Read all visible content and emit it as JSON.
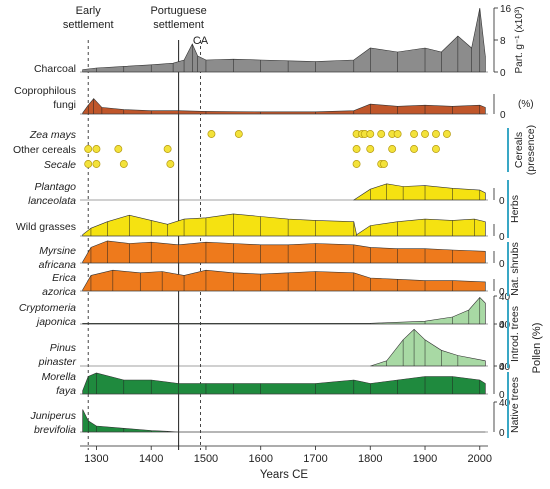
{
  "chart_data": {
    "type": "area",
    "xlabel": "Years CE",
    "xlim": [
      1270,
      2015
    ],
    "xticks": [
      1300,
      1400,
      1500,
      1600,
      1700,
      1800,
      1900,
      2000
    ],
    "colors": {
      "charcoal": "#8c8c8c",
      "fungi": "#c0562a",
      "herbs": "#f5e211",
      "shrubs": "#ee7a1c",
      "introduced": "#a8d9a4",
      "native": "#1f8a3e",
      "dots": "#f3e23a",
      "group_bar": "#39a7c5"
    },
    "events": [
      {
        "label": "Early\nsettlement",
        "year": 1285,
        "style": "dashed"
      },
      {
        "label": "Portuguese\nsettlement",
        "year": 1450,
        "style": "solid"
      },
      {
        "label": "CA",
        "year": 1490,
        "style": "dashed"
      }
    ],
    "panels": [
      {
        "key": "charcoal",
        "label": "Charcoal",
        "italic": false,
        "color": "charcoal",
        "max": 16,
        "points": [
          [
            1275,
            0.6
          ],
          [
            1300,
            1.0
          ],
          [
            1350,
            1.4
          ],
          [
            1400,
            1.8
          ],
          [
            1440,
            2.2
          ],
          [
            1460,
            3.0
          ],
          [
            1475,
            7.0
          ],
          [
            1485,
            4.0
          ],
          [
            1500,
            3.0
          ],
          [
            1550,
            3.2
          ],
          [
            1600,
            3.0
          ],
          [
            1650,
            2.8
          ],
          [
            1700,
            2.6
          ],
          [
            1770,
            3.0
          ],
          [
            1800,
            6.0
          ],
          [
            1850,
            5.0
          ],
          [
            1900,
            6.0
          ],
          [
            1930,
            5.0
          ],
          [
            1960,
            9.0
          ],
          [
            1985,
            6.0
          ],
          [
            2000,
            16.0
          ],
          [
            2010,
            4.0
          ]
        ]
      },
      {
        "key": "fungi",
        "label": "Coprophilous\nfungi",
        "italic": false,
        "color": "fungi",
        "max": 100,
        "points": [
          [
            1275,
            5
          ],
          [
            1285,
            40
          ],
          [
            1295,
            70
          ],
          [
            1310,
            30
          ],
          [
            1350,
            20
          ],
          [
            1400,
            15
          ],
          [
            1450,
            15
          ],
          [
            1500,
            12
          ],
          [
            1600,
            10
          ],
          [
            1700,
            10
          ],
          [
            1770,
            15
          ],
          [
            1800,
            45
          ],
          [
            1850,
            35
          ],
          [
            1900,
            40
          ],
          [
            1950,
            35
          ],
          [
            2000,
            40
          ],
          [
            2010,
            30
          ]
        ]
      },
      {
        "key": "wild_grasses",
        "label": "Wild grasses",
        "italic": false,
        "color": "herbs",
        "max": 100,
        "points": [
          [
            1275,
            5
          ],
          [
            1290,
            30
          ],
          [
            1320,
            55
          ],
          [
            1360,
            80
          ],
          [
            1400,
            60
          ],
          [
            1430,
            45
          ],
          [
            1460,
            65
          ],
          [
            1500,
            70
          ],
          [
            1550,
            85
          ],
          [
            1600,
            75
          ],
          [
            1650,
            65
          ],
          [
            1700,
            60
          ],
          [
            1770,
            55
          ],
          [
            1775,
            5
          ],
          [
            1800,
            40
          ],
          [
            1850,
            55
          ],
          [
            1900,
            65
          ],
          [
            1950,
            60
          ],
          [
            1990,
            65
          ],
          [
            2010,
            55
          ]
        ]
      },
      {
        "key": "plantago",
        "label": "Plantago\nlanceolata",
        "italic": true,
        "color": "herbs",
        "max": 100,
        "points": [
          [
            1770,
            0
          ],
          [
            1800,
            60
          ],
          [
            1830,
            90
          ],
          [
            1860,
            75
          ],
          [
            1900,
            80
          ],
          [
            1950,
            65
          ],
          [
            2000,
            55
          ],
          [
            2010,
            40
          ]
        ]
      },
      {
        "key": "myrsine",
        "label": "Myrsine\nafricana",
        "italic": true,
        "color": "shrubs",
        "max": 100,
        "points": [
          [
            1275,
            5
          ],
          [
            1290,
            60
          ],
          [
            1320,
            85
          ],
          [
            1360,
            75
          ],
          [
            1400,
            80
          ],
          [
            1450,
            70
          ],
          [
            1500,
            80
          ],
          [
            1550,
            75
          ],
          [
            1600,
            70
          ],
          [
            1650,
            70
          ],
          [
            1700,
            75
          ],
          [
            1770,
            70
          ],
          [
            1800,
            60
          ],
          [
            1850,
            55
          ],
          [
            1900,
            55
          ],
          [
            1950,
            50
          ],
          [
            2010,
            45
          ]
        ]
      },
      {
        "key": "erica",
        "label": "Erica\nazorica",
        "italic": true,
        "color": "shrubs",
        "max": 100,
        "points": [
          [
            1275,
            5
          ],
          [
            1290,
            60
          ],
          [
            1330,
            80
          ],
          [
            1380,
            70
          ],
          [
            1420,
            75
          ],
          [
            1460,
            60
          ],
          [
            1500,
            80
          ],
          [
            1550,
            70
          ],
          [
            1600,
            65
          ],
          [
            1650,
            70
          ],
          [
            1700,
            75
          ],
          [
            1770,
            70
          ],
          [
            1800,
            50
          ],
          [
            1850,
            45
          ],
          [
            1900,
            40
          ],
          [
            1950,
            40
          ],
          [
            2010,
            35
          ]
        ]
      },
      {
        "key": "cryptomeria",
        "label": "Cryptomeria\njaponica",
        "italic": true,
        "color": "introduced",
        "max": 40,
        "points": [
          [
            1275,
            1
          ],
          [
            1800,
            1
          ],
          [
            1900,
            4
          ],
          [
            1950,
            10
          ],
          [
            1980,
            20
          ],
          [
            2000,
            38
          ],
          [
            2010,
            30
          ]
        ]
      },
      {
        "key": "pinus",
        "label": "Pinus\npinaster",
        "italic": true,
        "color": "introduced",
        "max": 40,
        "points": [
          [
            1800,
            0
          ],
          [
            1830,
            5
          ],
          [
            1860,
            25
          ],
          [
            1880,
            35
          ],
          [
            1900,
            25
          ],
          [
            1930,
            15
          ],
          [
            1960,
            10
          ],
          [
            2010,
            5
          ]
        ]
      },
      {
        "key": "morella",
        "label": "Morella\nfaya",
        "italic": true,
        "color": "native",
        "max": 40,
        "points": [
          [
            1275,
            5
          ],
          [
            1285,
            25
          ],
          [
            1300,
            30
          ],
          [
            1350,
            20
          ],
          [
            1400,
            20
          ],
          [
            1450,
            15
          ],
          [
            1500,
            15
          ],
          [
            1550,
            15
          ],
          [
            1600,
            15
          ],
          [
            1700,
            15
          ],
          [
            1770,
            20
          ],
          [
            1800,
            15
          ],
          [
            1850,
            20
          ],
          [
            1900,
            25
          ],
          [
            1950,
            25
          ],
          [
            2000,
            20
          ],
          [
            2010,
            15
          ]
        ]
      },
      {
        "key": "juniperus",
        "label": "Juniperus\nbrevifolia",
        "italic": true,
        "color": "native",
        "max": 40,
        "points": [
          [
            1275,
            30
          ],
          [
            1285,
            15
          ],
          [
            1300,
            8
          ],
          [
            1350,
            5
          ],
          [
            1400,
            2
          ],
          [
            1430,
            1
          ],
          [
            1450,
            0
          ],
          [
            2010,
            0
          ]
        ]
      }
    ],
    "cereals": [
      {
        "label": "Zea mays",
        "italic": true,
        "years": [
          1510,
          1560,
          1775,
          1785,
          1790,
          1800,
          1820,
          1840,
          1850,
          1880,
          1900,
          1920,
          1940
        ]
      },
      {
        "label": "Other cereals",
        "italic": false,
        "years": [
          1285,
          1300,
          1340,
          1430,
          1775,
          1800,
          1840,
          1880,
          1920
        ]
      },
      {
        "label": "Secale",
        "italic": true,
        "years": [
          1285,
          1300,
          1350,
          1435,
          1775,
          1820,
          1825
        ]
      }
    ],
    "scales": {
      "charcoal": {
        "ticks": [
          "16",
          "8",
          "0"
        ],
        "unit": "Part. g⁻¹ (x10³)"
      },
      "fungi": {
        "ticks": [
          "0"
        ],
        "unit": "(%)"
      },
      "percent_0": "0",
      "percent_40": "40",
      "pollen_unit": "Pollen (%)"
    },
    "groups": {
      "cereals": "Cereals\n(presence)",
      "herbs": "Herbs",
      "shrubs": "Nat. shrubs",
      "introduced": "Introd. trees",
      "native": "Native trees"
    }
  }
}
